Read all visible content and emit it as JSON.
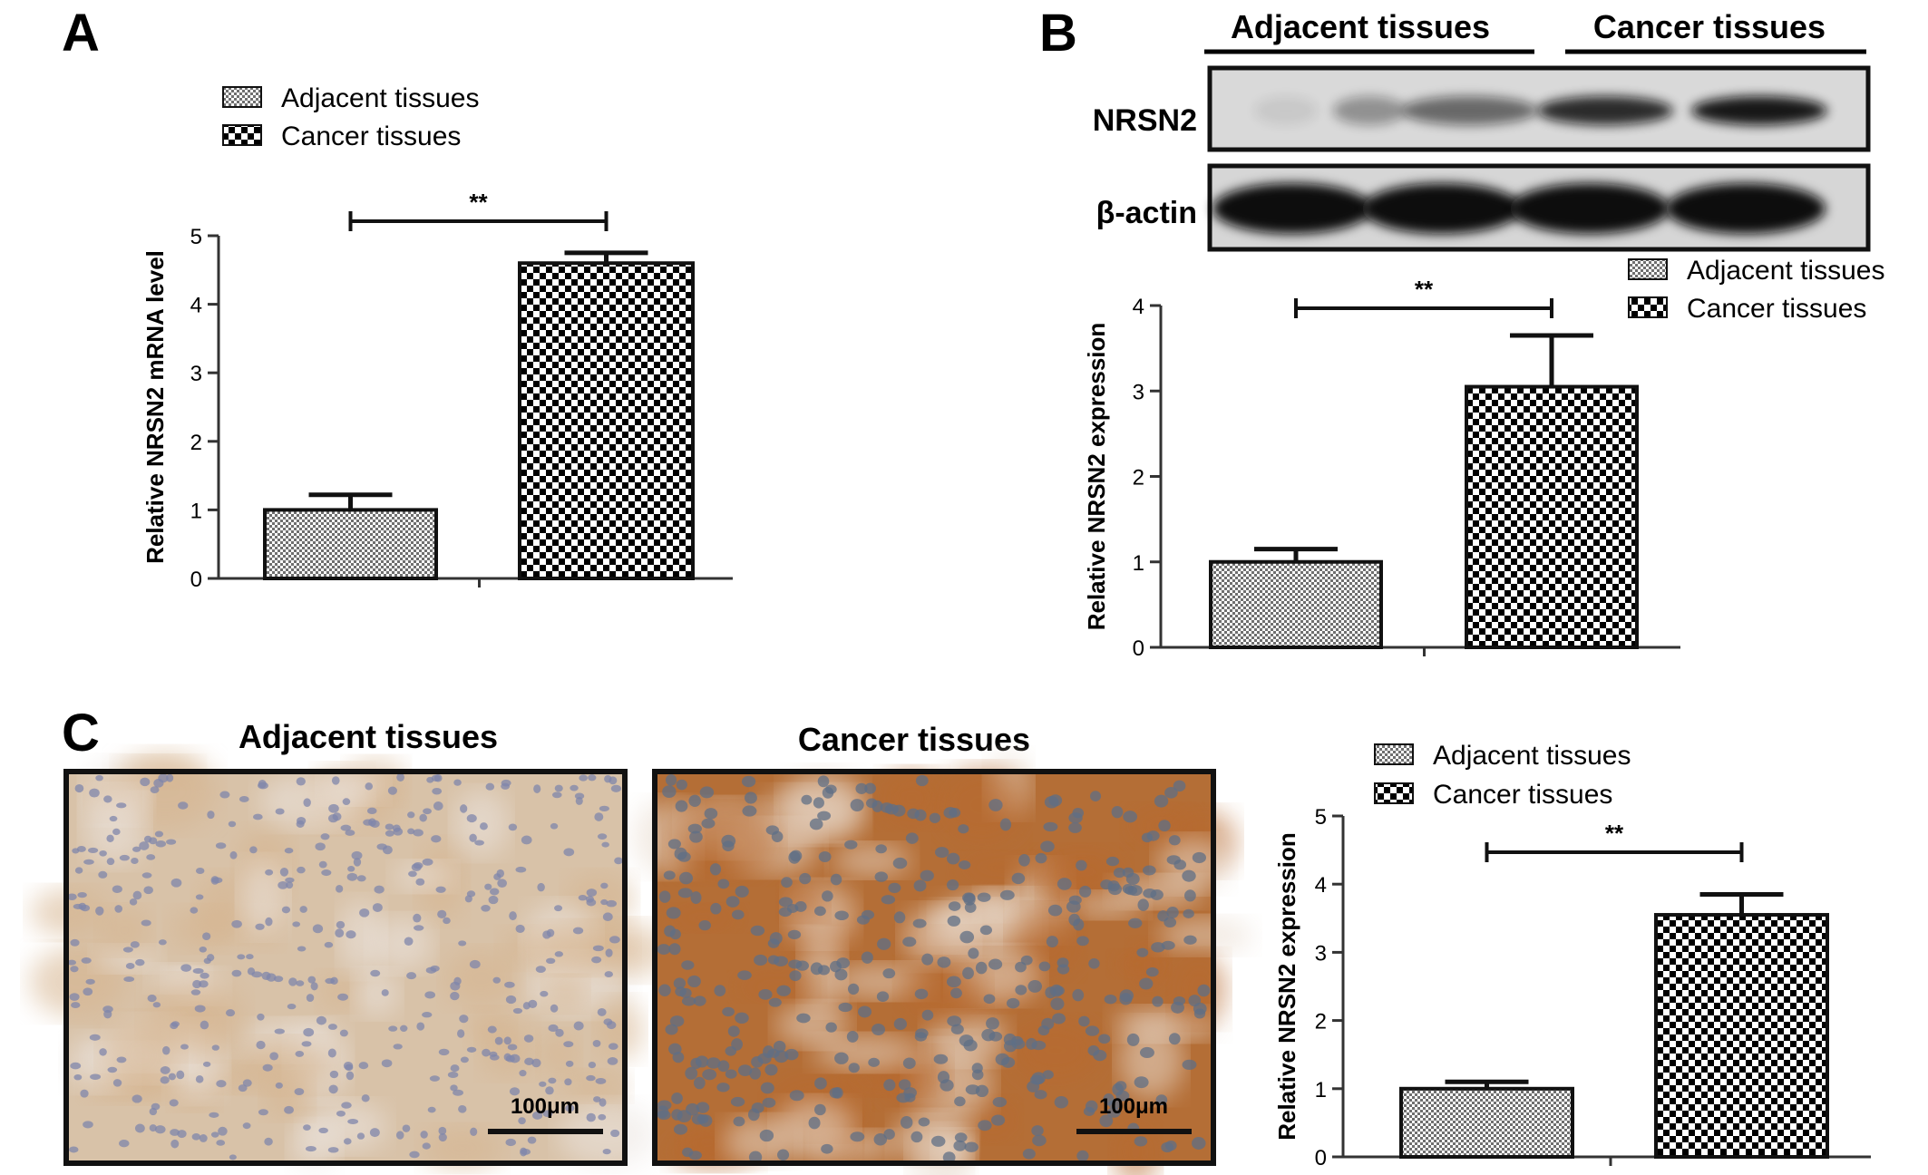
{
  "figure": {
    "panel_labels": {
      "a": "A",
      "b": "B",
      "c": "C"
    },
    "groups": [
      "Adjacent tissues",
      "Cancer tissues"
    ],
    "colors": {
      "adjacent_fill": "#8a8a8a",
      "cancer_fill": "#000000",
      "stain_adjacent": "#d6b48e",
      "stain_cancer": "#b8692e",
      "nuclei": "#5b73a8"
    }
  },
  "blot": {
    "header_left": "Adjacent tissues",
    "header_right": "Cancer tissues",
    "rows": [
      {
        "label": "NRSN2",
        "band_intensity": [
          0.08,
          0.35,
          0.55,
          0.85,
          0.95
        ]
      },
      {
        "label": "β-actin",
        "band_intensity": [
          1,
          1,
          1,
          1,
          1
        ]
      }
    ]
  },
  "ihc": {
    "titles": [
      "Adjacent tissues",
      "Cancer tissues"
    ],
    "scale_bar_label": "100μm"
  },
  "chart_data": [
    {
      "type": "bar",
      "panel": "A",
      "categories": [
        "Adjacent tissues",
        "Cancer tissues"
      ],
      "values": [
        1.0,
        4.6
      ],
      "errors": [
        0.22,
        0.15
      ],
      "ylabel": "Relative NRSN2 mRNA level",
      "ylim": [
        0,
        5
      ],
      "yticks": [
        "0",
        "1",
        "2",
        "3",
        "4",
        "5"
      ],
      "legend": [
        "Adjacent tissues",
        "Cancer tissues"
      ],
      "legend_position": "top-left",
      "significance": "**"
    },
    {
      "type": "bar",
      "panel": "B",
      "categories": [
        "Adjacent tissues",
        "Cancer tissues"
      ],
      "values": [
        1.0,
        3.05
      ],
      "errors": [
        0.15,
        0.6
      ],
      "ylabel": "Relative NRSN2 expression",
      "ylim": [
        0,
        4
      ],
      "yticks": [
        "0",
        "1",
        "2",
        "3",
        "4"
      ],
      "legend": [
        "Adjacent tissues",
        "Cancer tissues"
      ],
      "legend_position": "top-right",
      "significance": "**"
    },
    {
      "type": "bar",
      "panel": "C",
      "categories": [
        "Adjacent tissues",
        "Cancer tissues"
      ],
      "values": [
        1.0,
        3.55
      ],
      "errors": [
        0.1,
        0.3
      ],
      "ylabel": "Relative NRSN2 expression",
      "ylim": [
        0,
        5
      ],
      "yticks": [
        "0",
        "1",
        "2",
        "3",
        "4",
        "5"
      ],
      "legend": [
        "Adjacent tissues",
        "Cancer tissues"
      ],
      "legend_position": "top",
      "significance": "**"
    }
  ]
}
